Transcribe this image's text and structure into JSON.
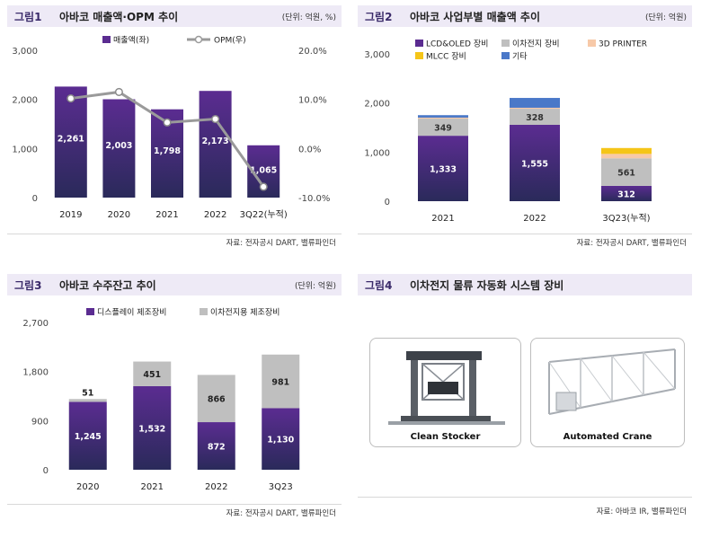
{
  "figure1": {
    "fig": "그림1",
    "title": "아바코 매출액·OPM 추이",
    "unit": "(단위: 억원, %)",
    "source": "자료: 전자공시 DART, 밸류파인더",
    "colors": {
      "bar": "#5b2c91",
      "bar_dark": "#2a2a5a",
      "line": "#9a9a9a"
    }
  },
  "figure2": {
    "fig": "그림2",
    "title": "아바코 사업부별 매출액 추이",
    "unit": "(단위: 억원)",
    "source": "자료: 전자공시 DART, 밸류파인더",
    "colors": {
      "lcd": "#5b2c91",
      "battery": "#bfbfbf",
      "printer": "#f7c9a8",
      "mlcc": "#f5c518",
      "etc": "#4a78c8"
    }
  },
  "figure3": {
    "fig": "그림3",
    "title": "아바코 수주잔고 추이",
    "unit": "(단위: 억원)",
    "source": "자료: 전자공시 DART, 밸류파인더",
    "colors": {
      "display": "#5b2c91",
      "battery": "#bfbfbf"
    }
  },
  "figure4": {
    "fig": "그림4",
    "title": "이차전지 물류 자동화 시스템 장비",
    "source": "자료: 아바코 IR, 밸류파인더",
    "items": [
      {
        "caption": "Clean Stocker"
      },
      {
        "caption": "Automated Crane"
      }
    ]
  },
  "chart_data": [
    {
      "type": "bar",
      "categories": [
        "2019",
        "2020",
        "2021",
        "2022",
        "3Q22(누적)"
      ],
      "series": [
        {
          "name": "매출액(좌)",
          "type": "bar",
          "axis": "left",
          "values": [
            2261,
            2003,
            1798,
            2173,
            1065
          ]
        },
        {
          "name": "OPM(우)",
          "type": "line",
          "axis": "right",
          "values": [
            10.2,
            11.5,
            5.3,
            6.0,
            -7.8
          ]
        }
      ],
      "ylim": [
        0,
        3000
      ],
      "yticks": [
        "0",
        "1,000",
        "2,000",
        "3,000"
      ],
      "y2lim": [
        -10,
        20
      ],
      "y2ticks": [
        "-10.0%",
        "0.0%",
        "10.0%",
        "20.0%"
      ],
      "value_labels": [
        "2,261",
        "2,003",
        "1,798",
        "2,173",
        "1,065"
      ],
      "legend": "top-center"
    },
    {
      "type": "bar",
      "stacked": true,
      "categories": [
        "2021",
        "2022",
        "3Q23(누적)"
      ],
      "series": [
        {
          "name": "LCD&OLED 장비",
          "values": [
            1333,
            1555,
            312
          ],
          "labels": [
            "1,333",
            "1,555",
            "312"
          ]
        },
        {
          "name": "이차전지 장비",
          "values": [
            349,
            328,
            561
          ],
          "labels": [
            "349",
            "328",
            "561"
          ]
        },
        {
          "name": "3D PRINTER",
          "values": [
            20,
            20,
            90
          ]
        },
        {
          "name": "MLCC 장비",
          "values": [
            0,
            0,
            120
          ]
        },
        {
          "name": "기타",
          "values": [
            50,
            200,
            0
          ]
        }
      ],
      "ylim": [
        0,
        3000
      ],
      "yticks": [
        "0",
        "1,000",
        "2,000",
        "3,000"
      ],
      "legend": "top-left"
    },
    {
      "type": "bar",
      "stacked": true,
      "categories": [
        "2020",
        "2021",
        "2022",
        "3Q23"
      ],
      "series": [
        {
          "name": "디스플레이 제조장비",
          "values": [
            1245,
            1532,
            872,
            1130
          ],
          "labels": [
            "1,245",
            "1,532",
            "872",
            "1,130"
          ]
        },
        {
          "name": "이차전지용 제조장비",
          "values": [
            51,
            451,
            866,
            981
          ],
          "labels": [
            "51",
            "451",
            "866",
            "981"
          ]
        }
      ],
      "ylim": [
        0,
        2700
      ],
      "yticks": [
        "0",
        "900",
        "1,800",
        "2,700"
      ],
      "legend": "top-center"
    }
  ]
}
